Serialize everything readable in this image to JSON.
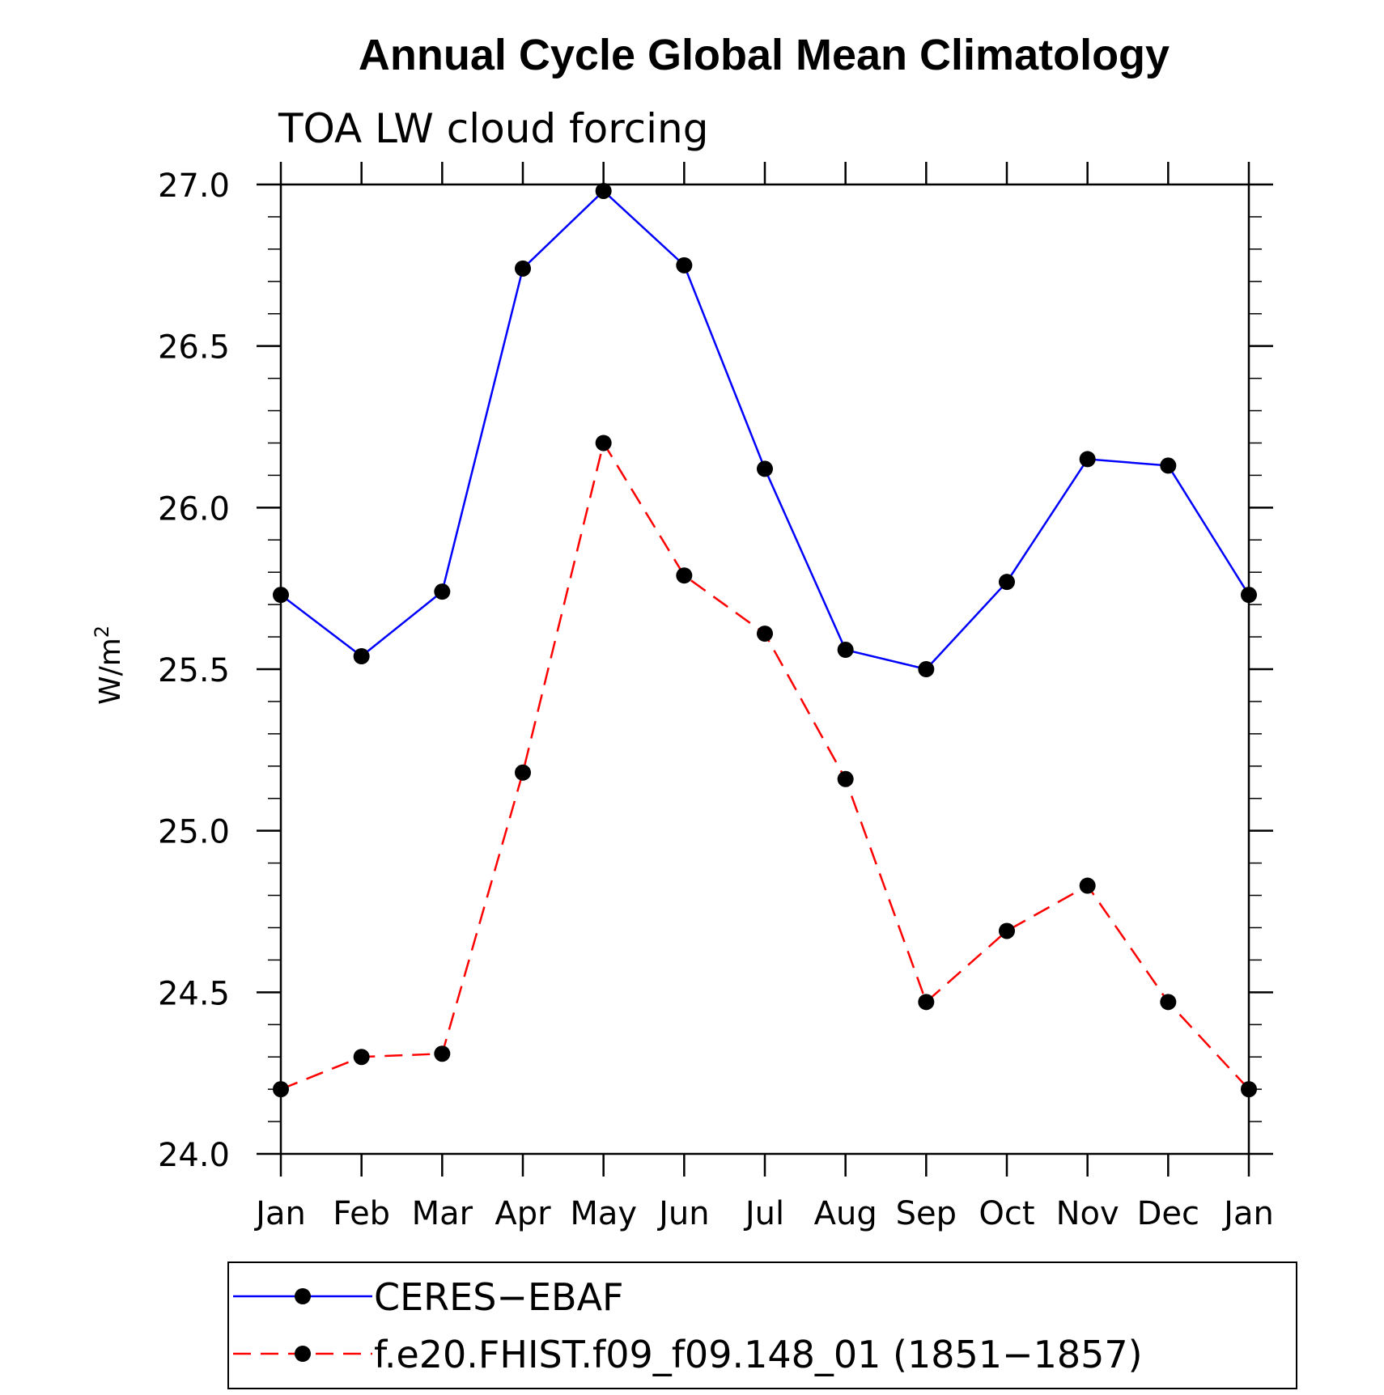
{
  "chart_data": {
    "type": "line",
    "title": "Annual Cycle Global Mean Climatology",
    "subtitle": "TOA LW cloud forcing",
    "xlabel": "",
    "ylabel": "W/m",
    "ylabel_superscript": "2",
    "categories": [
      "Jan",
      "Feb",
      "Mar",
      "Apr",
      "May",
      "Jun",
      "Jul",
      "Aug",
      "Sep",
      "Oct",
      "Nov",
      "Dec",
      "Jan"
    ],
    "ylim": [
      24.0,
      27.0
    ],
    "yticks": [
      "24.0",
      "24.5",
      "25.0",
      "25.5",
      "26.0",
      "26.5",
      "27.0"
    ],
    "grid": false,
    "legend_position": "bottom",
    "series": [
      {
        "name": "CERES−EBAF",
        "color": "#0000ff",
        "style": "solid",
        "marker": "filled-circle",
        "values": [
          25.73,
          25.54,
          25.74,
          26.74,
          26.98,
          26.75,
          26.12,
          25.56,
          25.5,
          25.77,
          26.15,
          26.13,
          25.73
        ]
      },
      {
        "name": "f.e20.FHIST.f09_f09.148_01 (1851−1857)",
        "color": "#ff0000",
        "style": "dashed",
        "marker": "filled-circle",
        "values": [
          24.2,
          24.3,
          24.31,
          25.18,
          26.2,
          25.79,
          25.61,
          25.16,
          24.47,
          24.69,
          24.83,
          24.47,
          24.2
        ]
      }
    ]
  }
}
